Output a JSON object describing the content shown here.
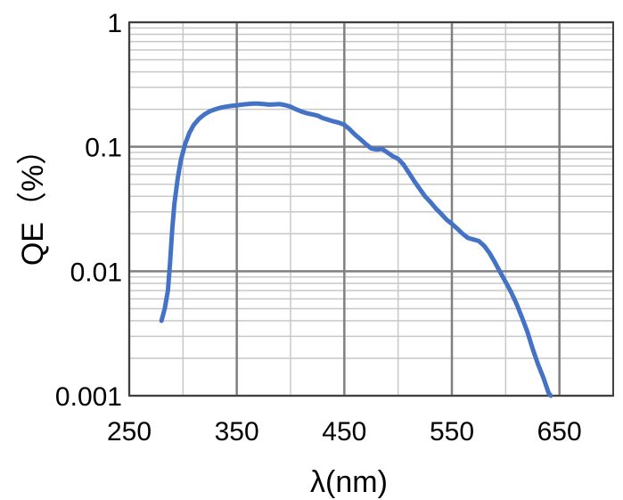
{
  "chart_data": {
    "type": "line",
    "title": "",
    "xlabel": "λ(nm)",
    "ylabel": "QE（%）",
    "xlim": [
      250,
      700
    ],
    "ylim": [
      0.001,
      1
    ],
    "yscale": "log",
    "grid": true,
    "xticks": [
      250,
      350,
      450,
      550,
      650
    ],
    "xtick_labels": [
      "250",
      "350",
      "450",
      "550",
      "650"
    ],
    "yticks": [
      0.001,
      0.01,
      0.1,
      1
    ],
    "ytick_labels": [
      "0.001",
      "0.01",
      "0.1",
      "1"
    ],
    "series": [
      {
        "color": "#4472c4",
        "x": [
          280,
          283,
          286,
          288,
          290,
          292,
          295,
          298,
          302,
          306,
          310,
          315,
          320,
          325,
          330,
          335,
          340,
          345,
          350,
          355,
          360,
          365,
          370,
          375,
          380,
          385,
          390,
          395,
          400,
          405,
          410,
          415,
          420,
          425,
          430,
          435,
          440,
          445,
          450,
          455,
          460,
          465,
          470,
          475,
          480,
          485,
          490,
          495,
          500,
          505,
          510,
          515,
          520,
          525,
          530,
          535,
          540,
          545,
          550,
          555,
          560,
          565,
          570,
          575,
          580,
          585,
          590,
          595,
          600,
          605,
          610,
          615,
          620,
          625,
          630,
          635,
          640,
          642
        ],
        "y": [
          0.004,
          0.005,
          0.007,
          0.012,
          0.022,
          0.035,
          0.055,
          0.078,
          0.105,
          0.13,
          0.15,
          0.168,
          0.182,
          0.193,
          0.2,
          0.206,
          0.21,
          0.213,
          0.215,
          0.218,
          0.22,
          0.222,
          0.222,
          0.22,
          0.218,
          0.219,
          0.22,
          0.216,
          0.21,
          0.2,
          0.192,
          0.186,
          0.182,
          0.178,
          0.17,
          0.165,
          0.16,
          0.156,
          0.15,
          0.138,
          0.125,
          0.115,
          0.105,
          0.097,
          0.095,
          0.096,
          0.09,
          0.084,
          0.08,
          0.072,
          0.062,
          0.053,
          0.046,
          0.04,
          0.036,
          0.032,
          0.029,
          0.026,
          0.024,
          0.022,
          0.02,
          0.0185,
          0.018,
          0.0175,
          0.016,
          0.014,
          0.0118,
          0.0098,
          0.0082,
          0.0068,
          0.0055,
          0.0043,
          0.0033,
          0.0024,
          0.0018,
          0.0014,
          0.00105,
          0.001
        ]
      }
    ]
  }
}
